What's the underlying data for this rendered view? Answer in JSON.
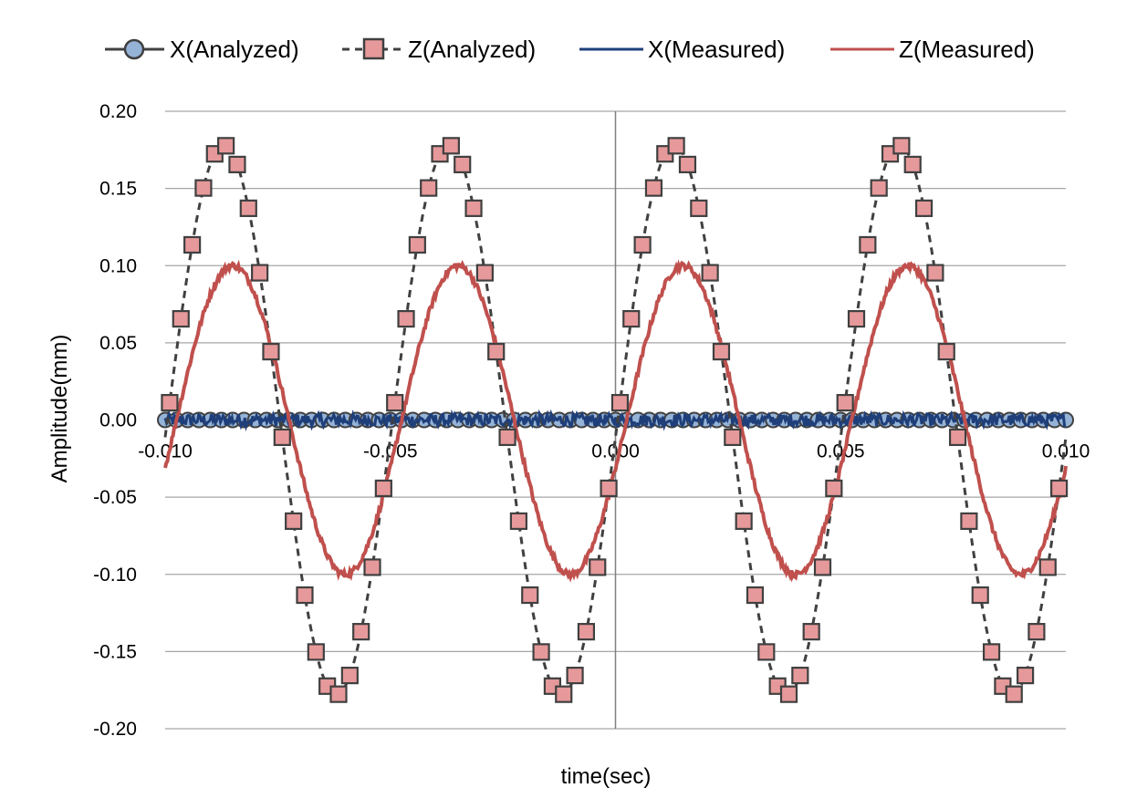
{
  "chart_data": {
    "type": "line",
    "title": "",
    "xlabel": "time(sec)",
    "ylabel": "Amplitude(mm)",
    "xlim": [
      -0.01,
      0.01
    ],
    "ylim": [
      -0.2,
      0.2
    ],
    "x_ticks": [
      -0.01,
      -0.005,
      0.0,
      0.005,
      0.01
    ],
    "x_tick_labels": [
      "-0.010",
      "-0.005",
      "0.000",
      "0.005",
      "0.010"
    ],
    "y_ticks": [
      0.2,
      0.15,
      0.1,
      0.05,
      0.0,
      -0.05,
      -0.1,
      -0.15,
      -0.2
    ],
    "y_tick_labels": [
      "0.20",
      "0.15",
      "0.10",
      "0.05",
      "0.00",
      "-0.05",
      "-0.10",
      "-0.15",
      "-0.20"
    ],
    "grid": {
      "horizontal": true,
      "vertical": false
    },
    "legend_position": "top",
    "series": [
      {
        "name": "X(Analyzed)",
        "style": "line-with-circle-markers",
        "color": "#404040",
        "marker_fill": "#95b3d7",
        "amplitude": 0.0,
        "offset": 0.0,
        "note_values": "constant 0.00 across full range"
      },
      {
        "name": "Z(Analyzed)",
        "style": "dashed-with-square-markers",
        "color": "#404040",
        "marker_fill": "#e6999a",
        "amplitude": 0.178,
        "period": 0.005,
        "peak_at": -0.0087,
        "trough_at": -0.0062
      },
      {
        "name": "X(Measured)",
        "style": "solid-noisy",
        "color": "#1f3f7a",
        "amplitude": 0.0,
        "noise": 0.004
      },
      {
        "name": "Z(Measured)",
        "style": "solid-noisy",
        "color": "#c0504d",
        "amplitude": 0.1,
        "period": 0.005,
        "peak_at": -0.0085,
        "trough_at": -0.006
      }
    ]
  }
}
